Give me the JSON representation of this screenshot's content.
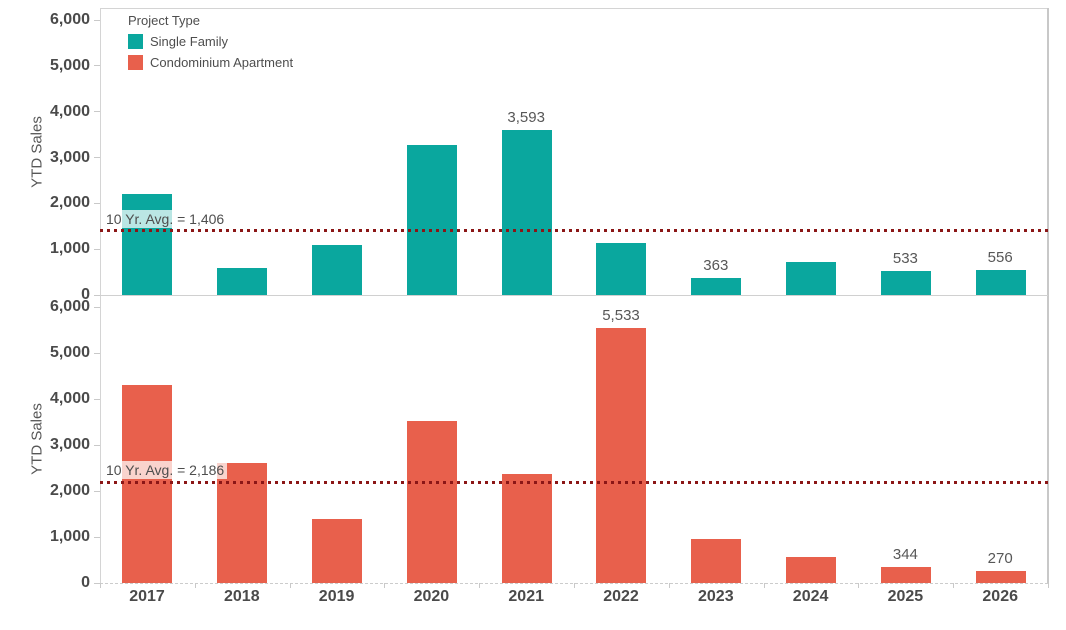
{
  "legend": {
    "title": "Project Type",
    "items": [
      {
        "label": "Single Family",
        "color": "#0aa79e"
      },
      {
        "label": "Condominium Apartment",
        "color": "#e8604c"
      }
    ]
  },
  "chart_data": {
    "type": "bar",
    "title": "",
    "xlabel": "",
    "ylabel": "YTD Sales",
    "ylim": [
      0,
      6000
    ],
    "grid": "off",
    "legend_position": "top-left-inside",
    "yticks": [
      "6,000",
      "5,000",
      "4,000",
      "3,000",
      "2,000",
      "1,000",
      "0"
    ],
    "ytick_values": [
      6000,
      5000,
      4000,
      3000,
      2000,
      1000,
      0
    ],
    "categories": [
      "2017",
      "2018",
      "2019",
      "2020",
      "2021",
      "2022",
      "2023",
      "2024",
      "2025",
      "2026"
    ],
    "panels": [
      {
        "series": "Single Family",
        "color": "#0aa79e",
        "values": [
          2200,
          600,
          1090,
          3280,
          3593,
          1130,
          363,
          710,
          533,
          556
        ],
        "point_labels": {
          "2021": "3,593",
          "2023": "363",
          "2025": "533",
          "2026": "556"
        },
        "ref_line": {
          "value": 1406,
          "label": "10 Yr. Avg. = 1,406",
          "color": "#8b1616",
          "style": "dotted"
        }
      },
      {
        "series": "Condominium Apartment",
        "color": "#e8604c",
        "values": [
          4300,
          2600,
          1400,
          3530,
          2370,
          5533,
          950,
          560,
          344,
          270
        ],
        "point_labels": {
          "2022": "5,533",
          "2025": "344",
          "2026": "270"
        },
        "ref_line": {
          "value": 2186,
          "label": "10 Yr. Avg. = 2,186",
          "color": "#8b1616",
          "style": "dotted"
        }
      }
    ]
  }
}
